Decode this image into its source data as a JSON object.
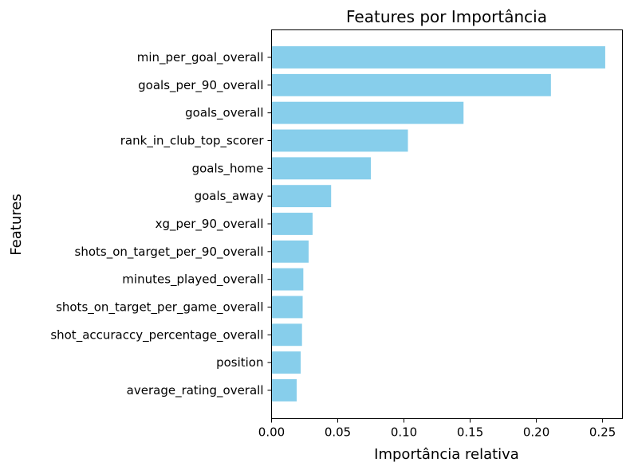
{
  "chart_data": {
    "type": "bar",
    "orientation": "horizontal",
    "title": "Features por Importância",
    "xlabel": "Importância relativa",
    "ylabel": "Features",
    "xlim": [
      0.0,
      0.265
    ],
    "x_ticks": [
      "0.00",
      "0.05",
      "0.10",
      "0.15",
      "0.20",
      "0.25"
    ],
    "x_tick_values": [
      0.0,
      0.05,
      0.1,
      0.15,
      0.2,
      0.25
    ],
    "bar_color": "#87CEEB",
    "grid": false,
    "categories": [
      "min_per_goal_overall",
      "goals_per_90_overall",
      "goals_overall",
      "rank_in_club_top_scorer",
      "goals_home",
      "goals_away",
      "xg_per_90_overall",
      "shots_on_target_per_90_overall",
      "minutes_played_overall",
      "shots_on_target_per_game_overall",
      "shot_accuraccy_percentage_overall",
      "position",
      "average_rating_overall"
    ],
    "values": [
      0.252,
      0.211,
      0.145,
      0.103,
      0.075,
      0.045,
      0.031,
      0.028,
      0.024,
      0.0235,
      0.023,
      0.022,
      0.019
    ]
  }
}
